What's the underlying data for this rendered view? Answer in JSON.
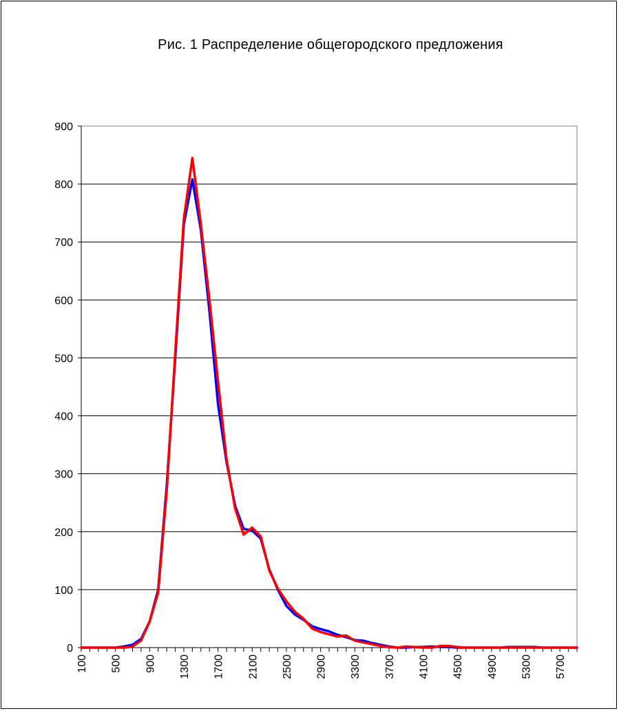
{
  "chart_data": {
    "type": "line",
    "title": "Рис. 1 Распределение  общегородского  предложения",
    "xlabel": "",
    "ylabel": "",
    "ylim": [
      0,
      900
    ],
    "xlim": [
      100,
      5900
    ],
    "x_tick_labels": [
      "100",
      "500",
      "900",
      "1300",
      "1700",
      "2100",
      "2500",
      "2900",
      "3300",
      "3700",
      "4100",
      "4500",
      "4900",
      "5300",
      "5700"
    ],
    "y_tick_labels": [
      "0",
      "100",
      "200",
      "300",
      "400",
      "500",
      "600",
      "700",
      "800",
      "900"
    ],
    "grid": true,
    "legend": "none",
    "x": [
      100,
      200,
      300,
      400,
      500,
      600,
      700,
      800,
      900,
      1000,
      1100,
      1200,
      1300,
      1400,
      1500,
      1600,
      1700,
      1800,
      1900,
      2000,
      2100,
      2200,
      2300,
      2400,
      2500,
      2600,
      2700,
      2800,
      2900,
      3000,
      3100,
      3200,
      3300,
      3400,
      3500,
      3600,
      3700,
      3800,
      3900,
      4000,
      4100,
      4200,
      4300,
      4400,
      4500,
      4600,
      4700,
      4800,
      4900,
      5000,
      5100,
      5200,
      5300,
      5400,
      5500,
      5600,
      5700,
      5800,
      5900
    ],
    "series": [
      {
        "color": "#0000ff",
        "values": [
          0,
          0,
          0,
          0,
          0,
          2,
          5,
          15,
          45,
          100,
          280,
          500,
          730,
          808,
          720,
          580,
          420,
          320,
          245,
          205,
          202,
          188,
          135,
          100,
          72,
          57,
          48,
          37,
          32,
          28,
          22,
          18,
          13,
          12,
          8,
          5,
          2,
          0,
          0,
          1,
          1,
          2,
          1,
          1,
          0,
          0,
          0,
          0,
          0,
          0,
          1,
          1,
          1,
          1,
          0,
          0,
          0,
          0,
          0
        ]
      },
      {
        "color": "#ff0000",
        "values": [
          0,
          0,
          0,
          0,
          0,
          0,
          2,
          12,
          45,
          95,
          270,
          510,
          740,
          845,
          730,
          600,
          460,
          325,
          240,
          195,
          207,
          192,
          133,
          102,
          80,
          62,
          50,
          33,
          27,
          23,
          19,
          21,
          12,
          9,
          6,
          3,
          1,
          0,
          2,
          1,
          0,
          0,
          3,
          3,
          1,
          0,
          0,
          0,
          0,
          0,
          0,
          0,
          0,
          0,
          0,
          0,
          0,
          0,
          0
        ]
      }
    ]
  }
}
